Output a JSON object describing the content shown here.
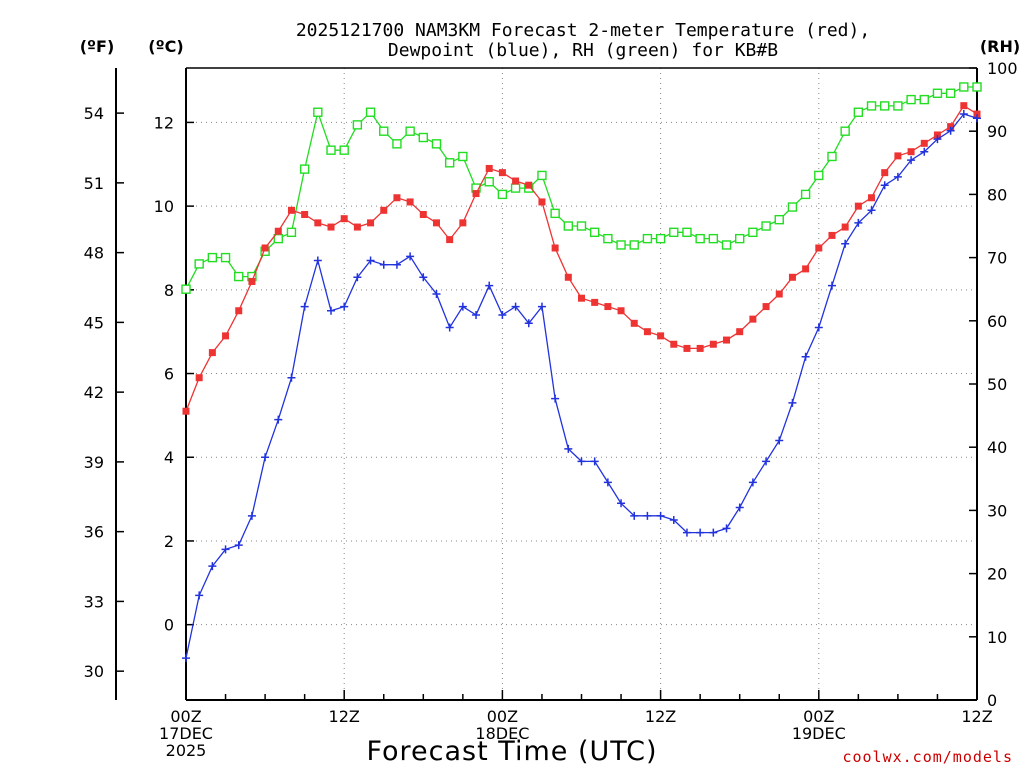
{
  "chart_data": {
    "type": "line",
    "title_line1": "2025121700 NAM3KM Forecast 2-meter Temperature (red),",
    "title_line2": "Dewpoint (blue), RH (green) for KB#B",
    "xlabel": "Forecast Time (UTC)",
    "credit": "coolwx.com/models",
    "units": {
      "fahrenheit": "(ºF)",
      "celsius": "(ºC)",
      "rh": "(RH)"
    },
    "x_hours_range": [
      0,
      60
    ],
    "celsius_range": [
      -1.8,
      13.3
    ],
    "fahrenheit_range": [
      28.76,
      55.94
    ],
    "rh_range": [
      0,
      100
    ],
    "celsius_ticks": [
      "0",
      "2",
      "4",
      "6",
      "8",
      "10",
      "12"
    ],
    "fahrenheit_ticks": [
      "30",
      "33",
      "36",
      "39",
      "42",
      "45",
      "48",
      "51",
      "54"
    ],
    "rh_ticks": [
      "0",
      "10",
      "20",
      "30",
      "40",
      "50",
      "60",
      "70",
      "80",
      "90",
      "100"
    ],
    "x_ticks": [
      {
        "hour": 0,
        "lines": [
          "00Z",
          "17DEC",
          "2025"
        ]
      },
      {
        "hour": 12,
        "lines": [
          "12Z"
        ]
      },
      {
        "hour": 24,
        "lines": [
          "00Z",
          "18DEC"
        ]
      },
      {
        "hour": 36,
        "lines": [
          "12Z"
        ]
      },
      {
        "hour": 48,
        "lines": [
          "00Z",
          "19DEC"
        ]
      },
      {
        "hour": 60,
        "lines": [
          "12Z"
        ]
      }
    ],
    "series": [
      {
        "name": "Temperature",
        "color": "#ee3333",
        "marker": "filled-square",
        "hours": [
          0,
          1,
          2,
          3,
          4,
          5,
          6,
          7,
          8,
          9,
          10,
          11,
          12,
          13,
          14,
          15,
          16,
          17,
          18,
          19,
          20,
          21,
          22,
          23,
          24,
          25,
          26,
          27,
          28,
          29,
          30,
          31,
          32,
          33,
          34,
          35,
          36,
          37,
          38,
          39,
          40,
          41,
          42,
          43,
          44,
          45,
          46,
          47,
          48,
          49,
          50,
          51,
          52,
          53,
          54,
          55,
          56,
          57,
          58,
          59,
          60
        ],
        "values": [
          5.1,
          5.9,
          6.5,
          6.9,
          7.5,
          8.2,
          9.0,
          9.4,
          9.9,
          9.8,
          9.6,
          9.5,
          9.7,
          9.5,
          9.6,
          9.9,
          10.2,
          10.1,
          9.8,
          9.6,
          9.2,
          9.6,
          10.3,
          10.9,
          10.8,
          10.6,
          10.5,
          10.1,
          9.0,
          8.3,
          7.8,
          7.7,
          7.6,
          7.5,
          7.2,
          7.0,
          6.9,
          6.7,
          6.6,
          6.6,
          6.7,
          6.8,
          7.0,
          7.3,
          7.6,
          7.9,
          8.3,
          8.5,
          9.0,
          9.3,
          9.5,
          10.0,
          10.2,
          10.8,
          11.2,
          11.3,
          11.5,
          11.7,
          11.9,
          12.4,
          12.2
        ]
      },
      {
        "name": "Dewpoint",
        "color": "#2233dd",
        "marker": "plus",
        "hours": [
          0,
          1,
          2,
          3,
          4,
          5,
          6,
          7,
          8,
          9,
          10,
          11,
          12,
          13,
          14,
          15,
          16,
          17,
          18,
          19,
          20,
          21,
          22,
          23,
          24,
          25,
          26,
          27,
          28,
          29,
          30,
          31,
          32,
          33,
          34,
          35,
          36,
          37,
          38,
          39,
          40,
          41,
          42,
          43,
          44,
          45,
          46,
          47,
          48,
          49,
          50,
          51,
          52,
          53,
          54,
          55,
          56,
          57,
          58,
          59,
          60
        ],
        "values": [
          -0.8,
          0.7,
          1.4,
          1.8,
          1.9,
          2.6,
          4.0,
          4.9,
          5.9,
          7.6,
          8.7,
          7.5,
          7.6,
          8.3,
          8.7,
          8.6,
          8.6,
          8.8,
          8.3,
          7.9,
          7.1,
          7.6,
          7.4,
          8.1,
          7.4,
          7.6,
          7.2,
          7.6,
          5.4,
          4.2,
          3.9,
          3.9,
          3.4,
          2.9,
          2.6,
          2.6,
          2.6,
          2.5,
          2.2,
          2.2,
          2.2,
          2.3,
          2.8,
          3.4,
          3.9,
          4.4,
          5.3,
          6.4,
          7.1,
          8.1,
          9.1,
          9.6,
          9.9,
          10.5,
          10.7,
          11.1,
          11.3,
          11.6,
          11.8,
          12.2,
          12.1
        ]
      },
      {
        "name": "RH",
        "color": "#22dd22",
        "marker": "open-square",
        "hours": [
          0,
          1,
          2,
          3,
          4,
          5,
          6,
          7,
          8,
          9,
          10,
          11,
          12,
          13,
          14,
          15,
          16,
          17,
          18,
          19,
          20,
          21,
          22,
          23,
          24,
          25,
          26,
          27,
          28,
          29,
          30,
          31,
          32,
          33,
          34,
          35,
          36,
          37,
          38,
          39,
          40,
          41,
          42,
          43,
          44,
          45,
          46,
          47,
          48,
          49,
          50,
          51,
          52,
          53,
          54,
          55,
          56,
          57,
          58,
          59,
          60
        ],
        "values": [
          65,
          69,
          70,
          70,
          67,
          67,
          71,
          73,
          74,
          84,
          93,
          87,
          87,
          91,
          93,
          90,
          88,
          90,
          89,
          88,
          85,
          86,
          81,
          82,
          80,
          81,
          81,
          83,
          77,
          75,
          75,
          74,
          73,
          72,
          72,
          73,
          73,
          74,
          74,
          73,
          73,
          72,
          73,
          74,
          75,
          76,
          78,
          80,
          83,
          86,
          90,
          93,
          94,
          94,
          94,
          95,
          95,
          96,
          96,
          97,
          97
        ]
      }
    ]
  }
}
